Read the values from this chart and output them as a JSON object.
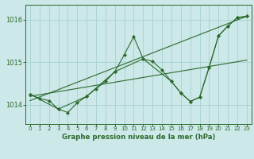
{
  "title": "Graphe pression niveau de la mer (hPa)",
  "bg_color": "#cce8e8",
  "grid_color": "#aad4d4",
  "line_color": "#2d6a2d",
  "marker_color": "#2d6a2d",
  "xlim": [
    -0.5,
    23.5
  ],
  "ylim": [
    1013.55,
    1016.35
  ],
  "yticks": [
    1014,
    1015,
    1016
  ],
  "xticks": [
    0,
    1,
    2,
    3,
    4,
    5,
    6,
    7,
    8,
    9,
    10,
    11,
    12,
    13,
    14,
    15,
    16,
    17,
    18,
    19,
    20,
    21,
    22,
    23
  ],
  "series1": {
    "x": [
      0,
      1,
      2,
      3,
      4,
      5,
      6,
      7,
      8,
      9,
      10,
      11,
      12,
      13,
      14,
      15,
      16,
      17,
      18,
      19,
      20,
      21,
      22,
      23
    ],
    "y": [
      1014.25,
      1014.15,
      1014.1,
      1013.9,
      1013.82,
      1014.05,
      1014.2,
      1014.38,
      1014.55,
      1014.78,
      1015.18,
      1015.6,
      1015.08,
      1015.02,
      1014.82,
      1014.55,
      1014.28,
      1014.08,
      1014.18,
      1014.88,
      1015.62,
      1015.85,
      1016.05,
      1016.08
    ]
  },
  "series2": {
    "x": [
      0,
      3,
      6,
      9,
      12,
      15,
      16,
      17,
      18,
      19,
      20,
      21,
      22,
      23
    ],
    "y": [
      1014.25,
      1013.9,
      1014.2,
      1014.78,
      1015.08,
      1014.55,
      1014.28,
      1014.08,
      1014.18,
      1014.88,
      1015.62,
      1015.85,
      1016.05,
      1016.08
    ]
  },
  "series3_linear": {
    "x": [
      0,
      23
    ],
    "y": [
      1014.1,
      1016.08
    ]
  },
  "series4_linear": {
    "x": [
      0,
      23
    ],
    "y": [
      1014.2,
      1015.05
    ]
  }
}
